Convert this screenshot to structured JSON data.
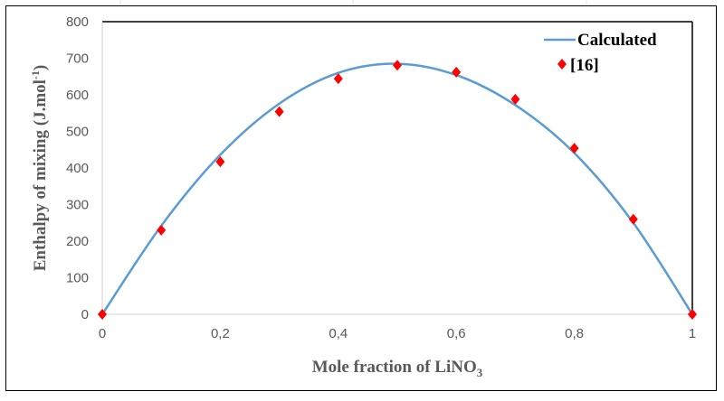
{
  "chart_data": {
    "type": "line",
    "xlabel": "Mole fraction of LiNO",
    "xlabel_subscript": "3",
    "ylabel": "Enthalpy of mixing (J.mol",
    "ylabel_superscript": "-1",
    "ylabel_suffix": ")",
    "xlim": [
      0,
      1
    ],
    "ylim": [
      0,
      800
    ],
    "xticks": [
      "0",
      "0,2",
      "0,4",
      "0,6",
      "0,8",
      "1"
    ],
    "xtick_values": [
      0,
      0.2,
      0.4,
      0.6,
      0.8,
      1
    ],
    "yticks": [
      "0",
      "100",
      "200",
      "300",
      "400",
      "500",
      "600",
      "700",
      "800"
    ],
    "ytick_values": [
      0,
      100,
      200,
      300,
      400,
      500,
      600,
      700,
      800
    ],
    "legend_position": "top-right",
    "series": [
      {
        "name": "Calculated",
        "kind": "line",
        "color": "#5b9bd5",
        "x": [
          0,
          0.1,
          0.2,
          0.3,
          0.4,
          0.5,
          0.6,
          0.7,
          0.8,
          0.9,
          1
        ],
        "y": [
          0,
          242,
          436,
          576,
          660,
          685,
          654,
          572,
          441,
          250,
          0
        ]
      },
      {
        "name": "[16]",
        "kind": "scatter",
        "color": "#ff0000",
        "x": [
          0,
          0.1,
          0.2,
          0.3,
          0.4,
          0.5,
          0.6,
          0.7,
          0.8,
          0.9,
          1
        ],
        "y": [
          0,
          230,
          417,
          554,
          644,
          681,
          662,
          588,
          454,
          260,
          0
        ]
      }
    ]
  }
}
